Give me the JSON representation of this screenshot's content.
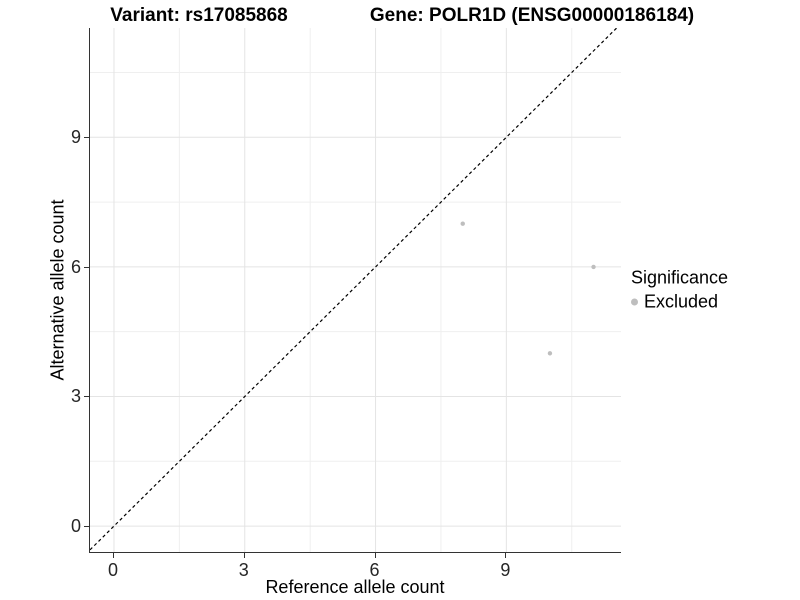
{
  "header": {
    "variant_title": "Variant: rs17085868",
    "gene_title": "Gene: POLR1D (ENSG00000186184)"
  },
  "legend": {
    "title": "Significance",
    "items": [
      {
        "label": "Excluded",
        "color": "#bebebe"
      }
    ]
  },
  "colors": {
    "background": "#ffffff",
    "grid_major": "#e4e4e4",
    "grid_minor": "#efefef",
    "axis_line": "#333333",
    "tick_label": "#262626",
    "title_text": "#000000",
    "point_excluded": "#bebebe",
    "reference_line": "#000000"
  },
  "chart_data": {
    "type": "scatter",
    "title": "Variant: rs17085868    Gene: POLR1D (ENSG00000186184)",
    "xlabel": "Reference allele count",
    "ylabel": "Alternative allele count",
    "xlim": [
      -0.55,
      11.63
    ],
    "ylim": [
      -0.6,
      11.53
    ],
    "x_ticks": [
      0,
      3,
      6,
      9
    ],
    "y_ticks": [
      0,
      3,
      6,
      9
    ],
    "x_minor_ticks": [
      1.5,
      4.5,
      7.5,
      10.5
    ],
    "y_minor_ticks": [
      1.5,
      4.5,
      7.5,
      10.5
    ],
    "grid": true,
    "legend_position": "right",
    "series": [
      {
        "name": "Excluded",
        "color": "#bebebe",
        "point_radius": 2.2,
        "points": [
          {
            "x": 8,
            "y": 7
          },
          {
            "x": 11,
            "y": 6
          },
          {
            "x": 10,
            "y": 4
          }
        ]
      }
    ],
    "reference_line": {
      "kind": "identity",
      "x1": -0.55,
      "y1": -0.55,
      "x2": 11.53,
      "y2": 11.53,
      "style": "dashed",
      "color": "#000000"
    }
  }
}
